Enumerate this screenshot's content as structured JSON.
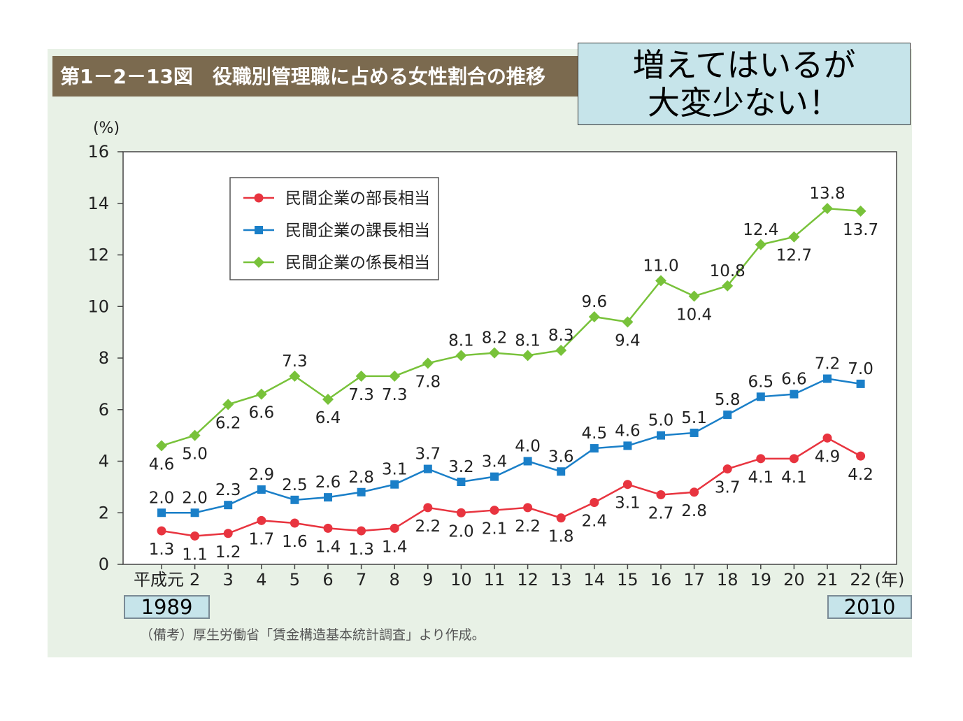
{
  "title": "第1－2－13図　役職別管理職に占める女性割合の推移",
  "callout": {
    "line1": "増えてはいるが",
    "line2": "大変少ない！"
  },
  "year_markers": {
    "start": "1989",
    "end": "2010"
  },
  "source_note": "（備考）厚生労働省「賃金構造基本統計調査」より作成。",
  "colors": {
    "bucho": "#e8343f",
    "kacho": "#1a7fc8",
    "kakaricho": "#78c23a",
    "panel": "#e8f1e6",
    "title_bar": "#7b6a4f",
    "callout_bg": "#c6e4ea"
  },
  "chart_data": {
    "type": "line",
    "ylabel": "(%)",
    "xunit": "(年)",
    "ylim": [
      0,
      16
    ],
    "yticks": [
      0,
      2,
      4,
      6,
      8,
      10,
      12,
      14,
      16
    ],
    "categories": [
      "平成元",
      "2",
      "3",
      "4",
      "5",
      "6",
      "7",
      "8",
      "9",
      "10",
      "11",
      "12",
      "13",
      "14",
      "15",
      "16",
      "17",
      "18",
      "19",
      "20",
      "21",
      "22"
    ],
    "series": [
      {
        "name": "民間企業の部長相当",
        "marker": "circle",
        "color": "#e8343f",
        "values": [
          1.3,
          1.1,
          1.2,
          1.7,
          1.6,
          1.4,
          1.3,
          1.4,
          2.2,
          2.0,
          2.1,
          2.2,
          1.8,
          2.4,
          3.1,
          2.7,
          2.8,
          3.7,
          4.1,
          4.1,
          4.9,
          4.2
        ],
        "labels": [
          "1.3",
          "1.1",
          "1.2",
          "1.7",
          "1.6",
          "1.4",
          "1.3",
          "1.4",
          "2.2",
          "2.0",
          "2.1",
          "2.2",
          "1.8",
          "2.4",
          "3.1",
          "2.7",
          "2.8",
          "3.7",
          "4.1",
          "4.1",
          "4.9",
          "4.2"
        ]
      },
      {
        "name": "民間企業の課長相当",
        "marker": "square",
        "color": "#1a7fc8",
        "values": [
          2.0,
          2.0,
          2.3,
          2.9,
          2.5,
          2.6,
          2.8,
          3.1,
          3.7,
          3.2,
          3.4,
          4.0,
          3.6,
          4.5,
          4.6,
          5.0,
          5.1,
          5.8,
          6.5,
          6.6,
          7.2,
          7.0
        ],
        "labels": [
          "2.0",
          "2.0",
          "2.3",
          "2.9",
          "2.5",
          "2.6",
          "2.8",
          "3.1",
          "3.7",
          "3.2",
          "3.4",
          "4.0",
          "3.6",
          "4.5",
          "4.6",
          "5.0",
          "5.1",
          "5.8",
          "6.5",
          "6.6",
          "7.2",
          "7.0"
        ]
      },
      {
        "name": "民間企業の係長相当",
        "marker": "diamond",
        "color": "#78c23a",
        "values": [
          4.6,
          5.0,
          6.2,
          6.6,
          7.3,
          6.4,
          7.3,
          7.3,
          7.8,
          8.1,
          8.2,
          8.1,
          8.3,
          9.6,
          9.4,
          11.0,
          10.4,
          10.8,
          12.4,
          12.7,
          13.8,
          13.7
        ],
        "labels": [
          "4.6",
          "5.0",
          "6.2",
          "6.6",
          "7.3",
          "6.4",
          "7.3",
          "7.3",
          "7.8",
          "8.1",
          "8.2",
          "8.1",
          "8.3",
          "9.6",
          "9.4",
          "11.0",
          "10.4",
          "10.8",
          "12.4",
          "12.7",
          "13.8",
          "13.7"
        ]
      }
    ]
  }
}
